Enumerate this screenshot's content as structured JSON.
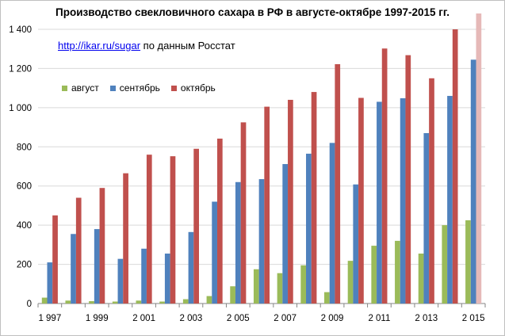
{
  "chart_data": {
    "type": "bar",
    "title": "Производство свекловичного сахара в РФ в августе-октябре 1997-2015 гг.",
    "subtitle_link": "http://ikar.ru/sugar",
    "subtitle_text": " по данным Росстат",
    "categories": [
      1997,
      1998,
      1999,
      2000,
      2001,
      2002,
      2003,
      2004,
      2005,
      2006,
      2007,
      2008,
      2009,
      2010,
      2011,
      2012,
      2013,
      2014,
      2015
    ],
    "x_tick_labels": [
      "1 997",
      "1 999",
      "2 001",
      "2 003",
      "2 005",
      "2 007",
      "2 009",
      "2 011",
      "2 013",
      "2 015"
    ],
    "y_tick_labels": [
      "0",
      "200",
      "400",
      "600",
      "800",
      "1 000",
      "1 200",
      "1 400"
    ],
    "ylim": [
      0,
      1400
    ],
    "y_step": 200,
    "grid": true,
    "legend_position": "top-left",
    "series": [
      {
        "name": "август",
        "color": "#9bbb59",
        "values": [
          30,
          15,
          12,
          10,
          15,
          10,
          22,
          38,
          88,
          175,
          155,
          195,
          58,
          218,
          295,
          320,
          255,
          400,
          425
        ]
      },
      {
        "name": "сентябрь",
        "color": "#4f81bd",
        "values": [
          210,
          355,
          380,
          228,
          280,
          255,
          365,
          520,
          620,
          635,
          712,
          765,
          820,
          608,
          1030,
          1048,
          870,
          1060,
          1245
        ]
      },
      {
        "name": "октябрь",
        "color": "#c0504d",
        "values": [
          450,
          540,
          590,
          665,
          760,
          752,
          790,
          842,
          925,
          1005,
          1040,
          1080,
          1222,
          1050,
          1302,
          1268,
          1150,
          1400,
          1480
        ]
      }
    ],
    "highlight": {
      "series": "октябрь",
      "category": 2015,
      "color": "#e6b9b8"
    }
  }
}
